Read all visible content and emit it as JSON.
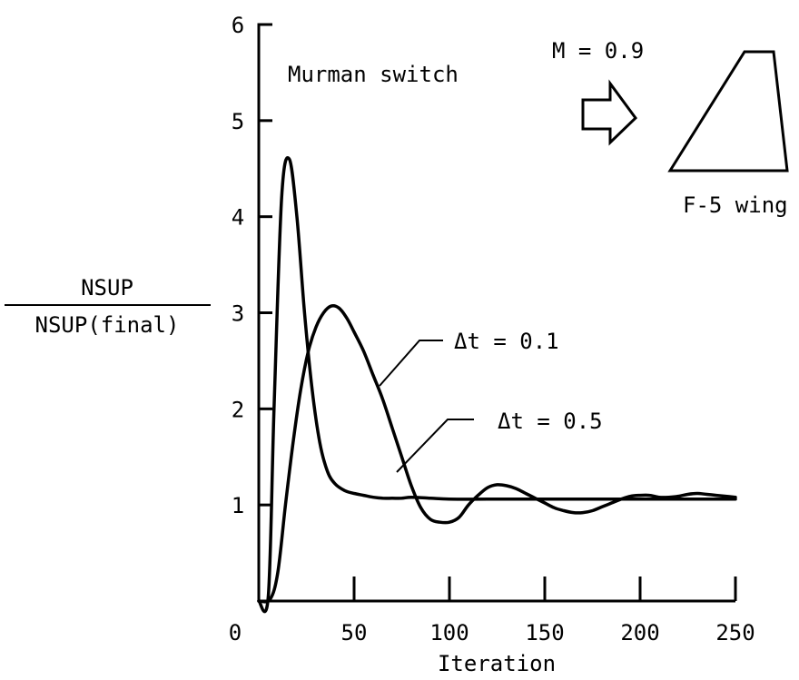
{
  "chart_data": {
    "type": "line",
    "xlabel": "Iteration",
    "ylabel_numerator": "NSUP",
    "ylabel_denominator": "NSUP(final)",
    "xlim": [
      0,
      250
    ],
    "ylim": [
      0,
      6
    ],
    "x_ticks": [
      0,
      50,
      100,
      150,
      200,
      250
    ],
    "y_ticks": [
      1,
      2,
      3,
      4,
      5,
      6
    ],
    "grid": false,
    "series": [
      {
        "name": "Δt = 0.5",
        "x": [
          0,
          5,
          8,
          12,
          16,
          20,
          24,
          28,
          32,
          36,
          40,
          45,
          50,
          55,
          60,
          65,
          70,
          75,
          80,
          90,
          100,
          120,
          150,
          200,
          250
        ],
        "y": [
          0,
          0.05,
          2.0,
          4.2,
          4.6,
          4.0,
          3.0,
          2.2,
          1.65,
          1.35,
          1.22,
          1.15,
          1.12,
          1.1,
          1.08,
          1.07,
          1.07,
          1.07,
          1.08,
          1.07,
          1.06,
          1.06,
          1.06,
          1.06,
          1.06
        ]
      },
      {
        "name": "Δt = 0.1",
        "x": [
          0,
          6,
          10,
          14,
          18,
          22,
          26,
          30,
          34,
          38,
          42,
          46,
          50,
          55,
          60,
          65,
          70,
          75,
          80,
          85,
          90,
          95,
          100,
          105,
          110,
          115,
          120,
          125,
          130,
          135,
          140,
          145,
          150,
          155,
          160,
          165,
          170,
          175,
          180,
          185,
          190,
          195,
          200,
          205,
          210,
          215,
          220,
          225,
          230,
          235,
          240,
          245,
          250
        ],
        "y": [
          0,
          0.02,
          0.3,
          1.0,
          1.65,
          2.2,
          2.6,
          2.85,
          3.0,
          3.07,
          3.05,
          2.95,
          2.8,
          2.6,
          2.35,
          2.1,
          1.8,
          1.5,
          1.2,
          0.97,
          0.85,
          0.82,
          0.82,
          0.87,
          1.0,
          1.1,
          1.18,
          1.21,
          1.2,
          1.17,
          1.12,
          1.07,
          1.02,
          0.97,
          0.94,
          0.92,
          0.92,
          0.94,
          0.98,
          1.02,
          1.06,
          1.09,
          1.1,
          1.1,
          1.08,
          1.08,
          1.09,
          1.11,
          1.12,
          1.11,
          1.1,
          1.09,
          1.08
        ]
      }
    ],
    "annotations": {
      "scheme": "Murman switch",
      "mach": "M = 0.9",
      "wing": "F-5 wing"
    }
  }
}
